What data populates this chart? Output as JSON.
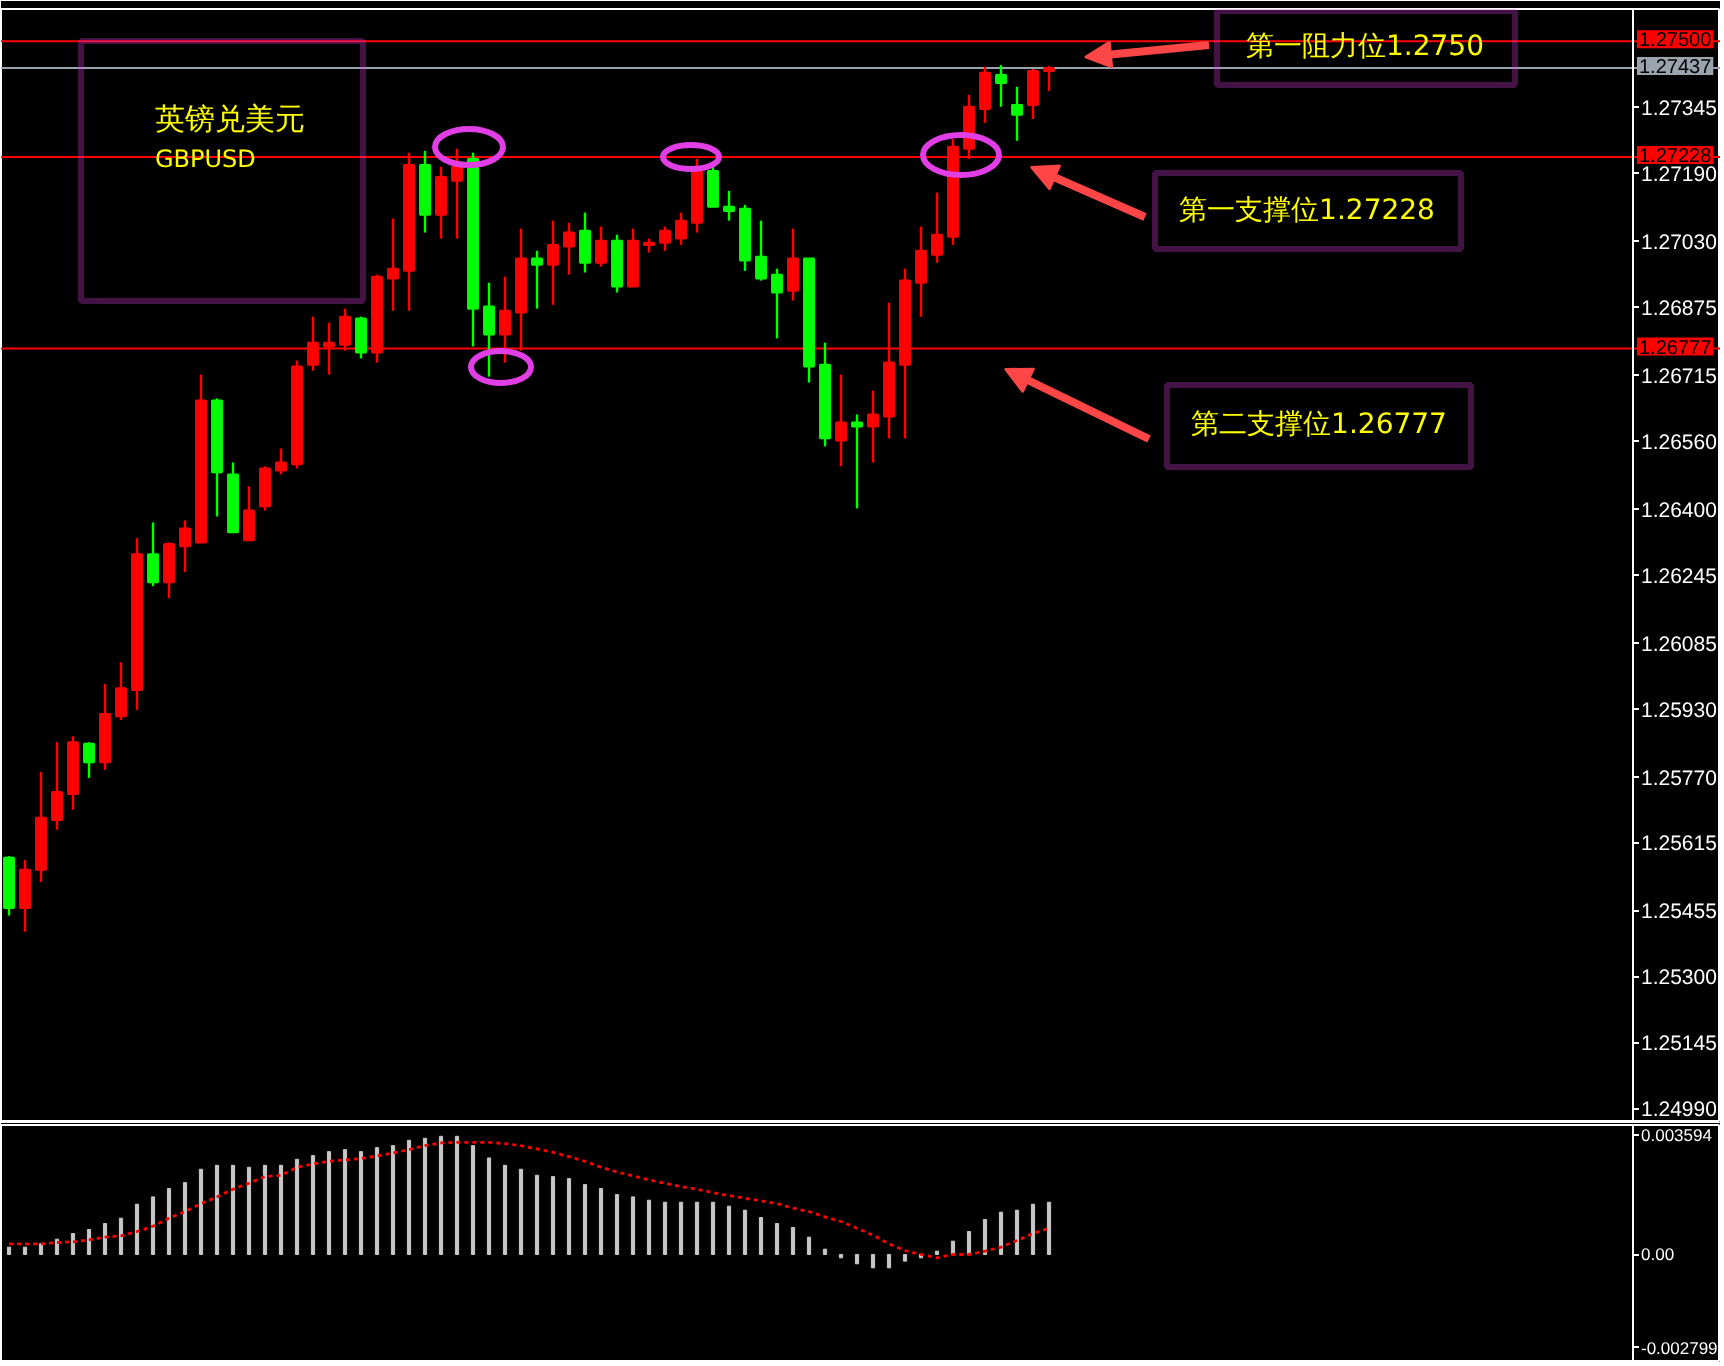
{
  "chart_data": [
    {
      "type": "candlestick",
      "title": "英镑兑美元",
      "subtitle": "GBPUSD",
      "categories": [
        null,
        null,
        null,
        null,
        null,
        null,
        null,
        null,
        null,
        null,
        null,
        null,
        null,
        null,
        null,
        null,
        null,
        null,
        null,
        null,
        null,
        null,
        null,
        null,
        null,
        null,
        null,
        null,
        null,
        null,
        null,
        null,
        null,
        null,
        null,
        null,
        null,
        null,
        null,
        null,
        null,
        null,
        null,
        null,
        null,
        null,
        null,
        null,
        null,
        null,
        null,
        null,
        null,
        null,
        null,
        null,
        null,
        null,
        null,
        null,
        null,
        null,
        null,
        null,
        null,
        null,
        null,
        null,
        null,
        null,
        null,
        null,
        null,
        null,
        null,
        null,
        null,
        null,
        null,
        null,
        null,
        null,
        null,
        null,
        null,
        null,
        null,
        null,
        null,
        null,
        null,
        null,
        null,
        null,
        null,
        null,
        null,
        null,
        null,
        null,
        null,
        null
      ],
      "ohlc": [
        [
          1.25579,
          1.25583,
          1.25443,
          1.25461
        ],
        [
          1.25461,
          1.25574,
          1.25405,
          1.25551
        ],
        [
          1.25551,
          1.25781,
          1.25522,
          1.25673
        ],
        [
          1.25668,
          1.25851,
          1.25645,
          1.25734
        ],
        [
          1.25729,
          1.25865,
          1.25692,
          1.25851
        ],
        [
          1.25847,
          1.25851,
          1.25767,
          1.25804
        ],
        [
          1.25804,
          1.25988,
          1.25786,
          1.25917
        ],
        [
          1.25912,
          1.26039,
          1.25903,
          1.25978
        ],
        [
          1.25974,
          1.26331,
          1.25927,
          1.26293
        ],
        [
          1.26293,
          1.26368,
          1.26218,
          1.26227
        ],
        [
          1.26227,
          1.26321,
          1.2619,
          1.26317
        ],
        [
          1.26312,
          1.26373,
          1.26251,
          1.26354
        ],
        [
          1.26321,
          1.26716,
          1.26321,
          1.26655
        ],
        [
          1.26655,
          1.2666,
          1.26382,
          1.26486
        ],
        [
          1.26481,
          1.26509,
          1.26345,
          1.26345
        ],
        [
          1.26326,
          1.26453,
          1.26326,
          1.26396
        ],
        [
          1.26406,
          1.265,
          1.26396,
          1.26495
        ],
        [
          1.2649,
          1.26542,
          1.26481,
          1.26509
        ],
        [
          1.26505,
          1.26749,
          1.26495,
          1.26735
        ],
        [
          1.26739,
          1.26852,
          1.26725,
          1.26791
        ],
        [
          1.26782,
          1.26838,
          1.26716,
          1.26791
        ],
        [
          1.26786,
          1.26871,
          1.26772,
          1.26852
        ],
        [
          1.26848,
          1.26852,
          1.26754,
          1.26768
        ],
        [
          1.26768,
          1.26951,
          1.26744,
          1.26946
        ],
        [
          1.26942,
          1.27083,
          1.26866,
          1.26965
        ],
        [
          1.2696,
          1.27238,
          1.26866,
          1.27209
        ],
        [
          1.27209,
          1.27242,
          1.2705,
          1.27092
        ],
        [
          1.27092,
          1.27205,
          1.27036,
          1.27181
        ],
        [
          1.27172,
          1.27247,
          1.27036,
          1.27205
        ],
        [
          1.27223,
          1.27238,
          1.26782,
          1.26871
        ],
        [
          1.26876,
          1.26932,
          1.26711,
          1.2681
        ],
        [
          1.2681,
          1.26946,
          1.26744,
          1.26866
        ],
        [
          1.26862,
          1.27059,
          1.26772,
          1.26989
        ],
        [
          1.26989,
          1.27007,
          1.26871,
          1.26974
        ],
        [
          1.26974,
          1.27078,
          1.2688,
          1.27021
        ],
        [
          1.27017,
          1.27073,
          1.26951,
          1.2705
        ],
        [
          1.27054,
          1.27097,
          1.26956,
          1.26979
        ],
        [
          1.26979,
          1.27064,
          1.2697,
          1.27031
        ],
        [
          1.27031,
          1.27045,
          1.26909,
          1.26923
        ],
        [
          1.26923,
          1.27059,
          1.26923,
          1.27031
        ],
        [
          1.27021,
          1.27036,
          1.27003,
          1.27026
        ],
        [
          1.27026,
          1.27064,
          1.27007,
          1.27054
        ],
        [
          1.27036,
          1.27097,
          1.27021,
          1.27078
        ],
        [
          1.27073,
          1.27223,
          1.2705,
          1.272
        ],
        [
          1.27195,
          1.27205,
          1.27111,
          1.27111
        ],
        [
          1.27111,
          1.27148,
          1.27078,
          1.27101
        ],
        [
          1.27106,
          1.27115,
          1.2696,
          1.26984
        ],
        [
          1.26993,
          1.27078,
          1.26937,
          1.26942
        ],
        [
          1.26951,
          1.26965,
          1.26801,
          1.26909
        ],
        [
          1.26913,
          1.27059,
          1.2689,
          1.26989
        ],
        [
          1.26989,
          1.26989,
          1.26697,
          1.26735
        ],
        [
          1.26739,
          1.26791,
          1.26547,
          1.26566
        ],
        [
          1.26561,
          1.26716,
          1.265,
          1.26603
        ],
        [
          1.26603,
          1.26622,
          1.26401,
          1.26594
        ],
        [
          1.26594,
          1.26678,
          1.26509,
          1.26622
        ],
        [
          1.26617,
          1.26885,
          1.26566,
          1.26744
        ],
        [
          1.26739,
          1.26965,
          1.26566,
          1.26937
        ],
        [
          1.26932,
          1.27064,
          1.26852,
          1.27007
        ],
        [
          1.26998,
          1.27144,
          1.26979,
          1.27045
        ],
        [
          1.2704,
          1.2727,
          1.27021,
          1.27252
        ],
        [
          1.27247,
          1.27374,
          1.27223,
          1.27346
        ],
        [
          1.27341,
          1.2744,
          1.27308,
          1.27426
        ],
        [
          1.27421,
          1.27444,
          1.27346,
          1.27402
        ],
        [
          1.2735,
          1.27393,
          1.27266,
          1.27327
        ],
        [
          1.2735,
          1.27435,
          1.27317,
          1.2743
        ],
        [
          1.2743,
          1.27442,
          1.27383,
          1.27437
        ],
        null,
        null,
        null,
        null,
        null,
        null,
        null,
        null,
        null,
        null,
        null,
        null,
        null,
        null,
        null,
        null,
        null,
        null,
        null,
        null,
        null,
        null,
        null,
        null,
        null,
        null,
        null,
        null,
        null,
        null,
        null,
        null,
        null,
        null,
        null,
        null
      ],
      "colors": [
        "#00ff00",
        "#ff0000",
        "#ff0000",
        "#ff0000",
        "#ff0000",
        "#00ff00",
        "#ff0000",
        "#ff0000",
        "#ff0000",
        "#00ff00",
        "#ff0000",
        "#ff0000",
        "#ff0000",
        "#00ff00",
        "#00ff00",
        "#ff0000",
        "#ff0000",
        "#ff0000",
        "#ff0000",
        "#ff0000",
        "#ff0000",
        "#ff0000",
        "#00ff00",
        "#ff0000",
        "#ff0000",
        "#ff0000",
        "#00ff00",
        "#ff0000",
        "#ff0000",
        "#00ff00",
        "#00ff00",
        "#ff0000",
        "#ff0000",
        "#00ff00",
        "#ff0000",
        "#ff0000",
        "#00ff00",
        "#ff0000",
        "#00ff00",
        "#ff0000",
        "#ff0000",
        "#ff0000",
        "#ff0000",
        "#ff0000",
        "#00ff00",
        "#00ff00",
        "#00ff00",
        "#00ff00",
        "#00ff00",
        "#ff0000",
        "#00ff00",
        "#00ff00",
        "#ff0000",
        "#00ff00",
        "#ff0000",
        "#ff0000",
        "#ff0000",
        "#ff0000",
        "#ff0000",
        "#ff0000",
        "#ff0000",
        "#ff0000",
        "#00ff00",
        "#00ff00",
        "#ff0000",
        "#ff0000",
        null,
        null,
        null,
        null,
        null,
        null,
        null,
        null,
        null,
        null,
        null,
        null,
        null,
        null,
        null,
        null,
        null,
        null,
        null,
        null,
        null,
        null,
        null,
        null,
        null,
        null,
        null,
        null,
        null,
        null,
        null,
        null,
        null,
        null,
        null,
        null
      ],
      "ylim": [
        1.24955,
        1.27576
      ],
      "yticks": [
        1.27345,
        {
          "value": 1.2719,
          "label": "1.27190"
        },
        {
          "value": 1.2703,
          "label": "1.27030"
        },
        1.26875,
        1.26715,
        {
          "value": 1.2656,
          "label": "1.26560"
        },
        {
          "value": 1.264,
          "label": "1.26400"
        },
        1.26245,
        1.26085,
        {
          "value": 1.2593,
          "label": "1.25930"
        },
        {
          "value": 1.2577,
          "label": "1.25770"
        },
        1.25615,
        1.25455,
        {
          "value": 1.253,
          "label": "1.25300"
        },
        1.25145,
        {
          "value": 1.2499,
          "label": "1.24990"
        }
      ],
      "ref_lines": [
        {
          "axis": "y",
          "value": 1.275,
          "label": "1.27500",
          "color": "#ff0000"
        },
        {
          "axis": "y",
          "value": 1.27437,
          "label": "1.27437",
          "color": "#9aa4ae"
        },
        {
          "axis": "y",
          "value": 1.27228,
          "label": "1.27228",
          "color": "#ff0000"
        },
        {
          "axis": "y",
          "value": 1.26777,
          "label": "1.26777",
          "color": "#ff0000"
        }
      ],
      "annotations": [
        "第一阻力位1.2750",
        "第一支撑位1.27228",
        "第二支撑位1.26777"
      ],
      "tick_labels": "y",
      "grid": false
    },
    {
      "type": "bar",
      "categories": [
        null,
        null,
        null,
        null,
        null,
        null,
        null,
        null,
        null,
        null,
        null,
        null,
        null,
        null,
        null,
        null,
        null,
        null,
        null,
        null,
        null,
        null,
        null,
        null,
        null,
        null,
        null,
        null,
        null,
        null,
        null,
        null,
        null,
        null,
        null,
        null,
        null,
        null,
        null,
        null,
        null,
        null,
        null,
        null,
        null,
        null,
        null,
        null,
        null,
        null,
        null,
        null,
        null,
        null,
        null,
        null,
        null,
        null,
        null,
        null,
        null,
        null,
        null,
        null,
        null,
        null,
        null,
        null,
        null,
        null,
        null,
        null,
        null,
        null,
        null,
        null,
        null,
        null,
        null,
        null,
        null,
        null,
        null,
        null,
        null,
        null,
        null,
        null,
        null,
        null,
        null,
        null,
        null,
        null,
        null,
        null,
        null,
        null,
        null,
        null,
        null,
        null
      ],
      "series": [
        {
          "type": "bar",
          "color": "#c8c8c8",
          "values": [
            0.00022,
            0.00022,
            0.00032,
            0.00046,
            0.00063,
            0.00075,
            0.00093,
            0.00109,
            0.00151,
            0.00173,
            0.00198,
            0.00216,
            0.00256,
            0.00268,
            0.00268,
            0.00262,
            0.00268,
            0.00268,
            0.00286,
            0.00297,
            0.00309,
            0.00315,
            0.00309,
            0.00321,
            0.00327,
            0.00343,
            0.00349,
            0.00355,
            0.00355,
            0.00327,
            0.0029,
            0.00268,
            0.00256,
            0.00238,
            0.00234,
            0.00228,
            0.0021,
            0.00198,
            0.0018,
            0.00173,
            0.00163,
            0.00157,
            0.00157,
            0.00157,
            0.00157,
            0.00145,
            0.00133,
            0.00111,
            0.00093,
            0.00081,
            0.00052,
            0.00016,
            -0.0001,
            -0.00028,
            -0.0004,
            -0.0004,
            -0.0002,
            -0.0001,
            0.0001,
            0.0004,
            0.00069,
            0.00105,
            0.00127,
            0.00133,
            0.00151,
            0.00157,
            null,
            null,
            null,
            null,
            null,
            null,
            null,
            null,
            null,
            null,
            null,
            null,
            null,
            null,
            null,
            null,
            null,
            null,
            null,
            null,
            null,
            null,
            null,
            null,
            null,
            null,
            null,
            null,
            null,
            null,
            null,
            null,
            null,
            null,
            null,
            null
          ]
        },
        {
          "type": "line",
          "color": "#ff0000",
          "line_style": "dotted",
          "values": [
            0.00032,
            0.00032,
            0.00032,
            0.00036,
            0.00038,
            0.00044,
            0.00052,
            0.00056,
            0.00069,
            0.00085,
            0.00109,
            0.00129,
            0.00153,
            0.00173,
            0.00196,
            0.00214,
            0.00234,
            0.00238,
            0.00262,
            0.00272,
            0.0028,
            0.00284,
            0.00288,
            0.00296,
            0.00305,
            0.00315,
            0.00327,
            0.00335,
            0.00337,
            0.00337,
            0.00337,
            0.00333,
            0.00327,
            0.00317,
            0.00307,
            0.00294,
            0.0028,
            0.00262,
            0.00248,
            0.00236,
            0.00224,
            0.00214,
            0.00204,
            0.00196,
            0.00186,
            0.00177,
            0.00169,
            0.00161,
            0.00153,
            0.00139,
            0.00129,
            0.00113,
            0.00099,
            0.00079,
            0.00058,
            0.00032,
            0.00012,
            0,
            -0.0001,
            0,
            0,
            0.0001,
            0.00022,
            0.00042,
            0.00063,
            0.00079,
            null,
            null,
            null,
            null,
            null,
            null,
            null,
            null,
            null,
            null,
            null,
            null,
            null,
            null,
            null,
            null,
            null,
            null,
            null,
            null,
            null,
            null,
            null,
            null,
            null,
            null,
            null,
            null,
            null,
            null,
            null,
            null,
            null,
            null,
            null,
            null
          ]
        }
      ],
      "ylim": [
        -0.0032,
        0.00389
      ],
      "yticks": [
        0.003594,
        {
          "value": 0,
          "label": "0.00"
        },
        -0.002799
      ],
      "tick_labels": "y",
      "grid": false
    }
  ]
}
